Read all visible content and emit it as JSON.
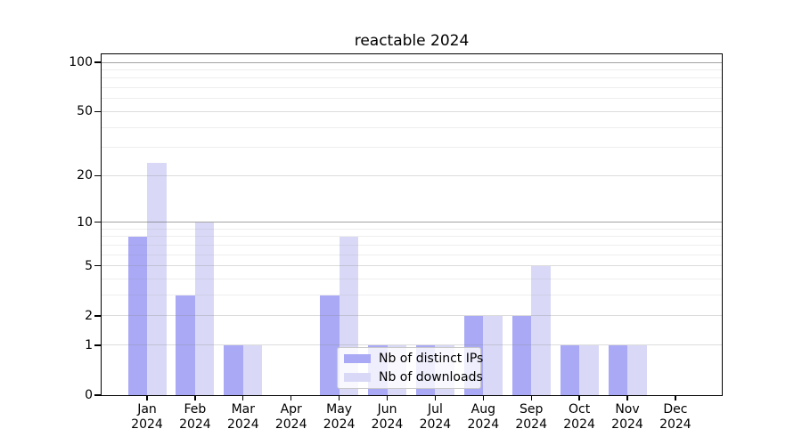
{
  "chart_data": {
    "type": "bar",
    "title": "reactable 2024",
    "xlabel": "",
    "ylabel": "",
    "y_axis": {
      "scale": "log1p",
      "ticks": [
        0,
        1,
        2,
        5,
        10,
        20,
        50,
        100
      ],
      "tick_labels": [
        "0",
        "1",
        "2",
        "5",
        "10",
        "20",
        "50",
        "100"
      ],
      "minor_gridlines": [
        3,
        4,
        6,
        7,
        8,
        9,
        30,
        40,
        60,
        70,
        80,
        90
      ],
      "ylim": [
        0,
        112
      ],
      "grid": "on"
    },
    "categories": [
      {
        "month": "Jan",
        "year": "2024"
      },
      {
        "month": "Feb",
        "year": "2024"
      },
      {
        "month": "Mar",
        "year": "2024"
      },
      {
        "month": "Apr",
        "year": "2024"
      },
      {
        "month": "May",
        "year": "2024"
      },
      {
        "month": "Jun",
        "year": "2024"
      },
      {
        "month": "Jul",
        "year": "2024"
      },
      {
        "month": "Aug",
        "year": "2024"
      },
      {
        "month": "Sep",
        "year": "2024"
      },
      {
        "month": "Oct",
        "year": "2024"
      },
      {
        "month": "Nov",
        "year": "2024"
      },
      {
        "month": "Dec",
        "year": "2024"
      }
    ],
    "series": [
      {
        "name": "Nb of distinct IPs",
        "color": "#a9a9f6",
        "values": [
          8,
          3,
          1,
          0,
          3,
          1,
          1,
          2,
          2,
          1,
          1,
          0
        ]
      },
      {
        "name": "Nb of downloads",
        "color": "#d9d9f7",
        "values": [
          24,
          10,
          1,
          0,
          8,
          1,
          1,
          2,
          5,
          1,
          1,
          0
        ]
      }
    ],
    "legend": {
      "position": "bottom-center-inside",
      "entries": [
        "Nb of distinct IPs",
        "Nb of downloads"
      ]
    }
  }
}
